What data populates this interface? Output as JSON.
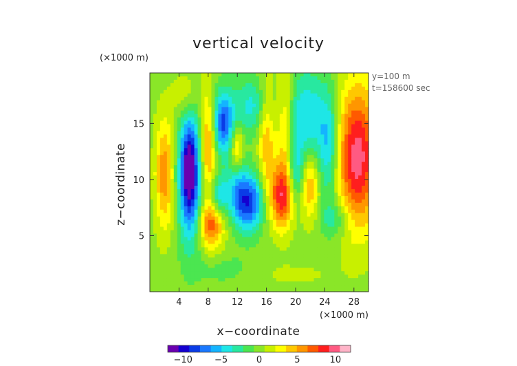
{
  "chart_data": {
    "type": "heatmap",
    "title": "vertical velocity",
    "xlabel": "x−coordinate",
    "ylabel": "z−coordinate",
    "x_unit": "(×1000 m)",
    "y_unit": "(×1000 m)",
    "annotations": [
      "y=100 m",
      "t=158600 sec"
    ],
    "xlim": [
      0,
      30
    ],
    "ylim": [
      0,
      19.5
    ],
    "x_ticks": [
      4,
      8,
      12,
      16,
      20,
      24,
      28
    ],
    "x_tick_labels": [
      "4",
      "8",
      "12",
      "16",
      "20",
      "24",
      "28"
    ],
    "y_ticks": [
      5,
      10,
      15
    ],
    "y_tick_labels": [
      "5",
      "10",
      "15"
    ],
    "grid": false,
    "colorbar": {
      "range": [
        -12,
        12
      ],
      "ticks": [
        -10,
        -5,
        0,
        5,
        10
      ],
      "tick_labels": [
        "−10",
        "−5",
        "0",
        "5",
        "10"
      ],
      "placement": "bottom",
      "colors": [
        "#6a00b0",
        "#1400d0",
        "#0a3ce6",
        "#1a78ff",
        "#14b4ff",
        "#1ee6e6",
        "#28e8a0",
        "#4be650",
        "#8ae628",
        "#c8f000",
        "#ffff00",
        "#ffc800",
        "#ff9600",
        "#ff5a00",
        "#ff1e1e",
        "#ff5a82",
        "#ffb4c8"
      ]
    },
    "features": [
      {
        "x": 2.0,
        "z": 10.5,
        "sx": 0.9,
        "sz": 3.5,
        "amp": 6
      },
      {
        "x": 5.5,
        "z": 10.5,
        "sx": 1.1,
        "sz": 4.0,
        "amp": -11
      },
      {
        "x": 5.3,
        "z": 10.8,
        "sx": 0.45,
        "sz": 1.6,
        "amp": -4
      },
      {
        "x": 5.0,
        "z": 17.5,
        "sx": 1.2,
        "sz": 1.5,
        "amp": 3
      },
      {
        "x": 8.0,
        "z": 13.0,
        "sx": 0.8,
        "sz": 3.5,
        "amp": 6
      },
      {
        "x": 8.5,
        "z": 6.0,
        "sx": 1.2,
        "sz": 1.5,
        "amp": 7
      },
      {
        "x": 10.0,
        "z": 15.0,
        "sx": 1.0,
        "sz": 2.0,
        "amp": -8
      },
      {
        "x": 9.5,
        "z": 8.5,
        "sx": 1.0,
        "sz": 1.4,
        "amp": -5
      },
      {
        "x": 12.0,
        "z": 12.5,
        "sx": 0.6,
        "sz": 1.5,
        "amp": 5
      },
      {
        "x": 12.0,
        "z": 10.0,
        "sx": 0.8,
        "sz": 2.0,
        "amp": -3
      },
      {
        "x": 13.5,
        "z": 8.0,
        "sx": 1.5,
        "sz": 1.8,
        "amp": -9
      },
      {
        "x": 14.0,
        "z": 16.5,
        "sx": 2.0,
        "sz": 1.8,
        "amp": -4
      },
      {
        "x": 16.0,
        "z": 14.0,
        "sx": 0.8,
        "sz": 3.5,
        "amp": 5
      },
      {
        "x": 18.5,
        "z": 14.5,
        "sx": 0.8,
        "sz": 4.5,
        "amp": 4
      },
      {
        "x": 18.0,
        "z": 8.5,
        "sx": 1.2,
        "sz": 2.0,
        "amp": 8
      },
      {
        "x": 20.0,
        "z": 10.5,
        "sx": 0.8,
        "sz": 2.0,
        "amp": -4
      },
      {
        "x": 21.5,
        "z": 15.5,
        "sx": 1.8,
        "sz": 3.0,
        "amp": -5
      },
      {
        "x": 22.0,
        "z": 9.5,
        "sx": 0.9,
        "sz": 2.2,
        "amp": 5
      },
      {
        "x": 24.5,
        "z": 13.0,
        "sx": 1.0,
        "sz": 3.5,
        "amp": -5
      },
      {
        "x": 25.5,
        "z": 6.5,
        "sx": 1.5,
        "sz": 1.2,
        "amp": -3
      },
      {
        "x": 28.5,
        "z": 12.0,
        "sx": 2.0,
        "sz": 4.5,
        "amp": 10
      },
      {
        "x": 10.0,
        "z": 2.0,
        "sx": 3.0,
        "sz": 1.0,
        "amp": -1.2
      },
      {
        "x": 20.0,
        "z": 1.5,
        "sx": 4.0,
        "sz": 0.8,
        "amp": 1.0
      }
    ]
  }
}
